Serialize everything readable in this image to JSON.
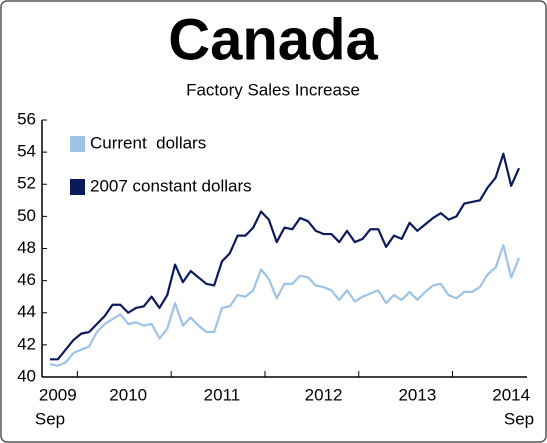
{
  "chart_data": {
    "type": "line",
    "title": "Canada",
    "subtitle": "Factory Sales Increase",
    "categories": [
      null,
      "2009",
      null,
      null,
      null,
      null,
      null,
      null,
      null,
      null,
      "2010",
      null,
      null,
      null,
      null,
      null,
      null,
      null,
      null,
      null,
      null,
      null,
      "2011",
      null,
      null,
      null,
      null,
      null,
      null,
      null,
      null,
      null,
      null,
      null,
      null,
      "2012",
      null,
      null,
      null,
      null,
      null,
      null,
      null,
      null,
      null,
      null,
      null,
      "2013",
      null,
      null,
      null,
      null,
      null,
      null,
      null,
      null,
      null,
      null,
      null,
      "2014",
      null
    ],
    "category_sublabels": [
      "Sep",
      null,
      null,
      null,
      null,
      null,
      null,
      null,
      null,
      null,
      null,
      null,
      null,
      null,
      null,
      null,
      null,
      null,
      null,
      null,
      null,
      null,
      null,
      null,
      null,
      null,
      null,
      null,
      null,
      null,
      null,
      null,
      null,
      null,
      null,
      null,
      null,
      null,
      null,
      null,
      null,
      null,
      null,
      null,
      null,
      null,
      null,
      null,
      null,
      null,
      null,
      null,
      null,
      null,
      null,
      null,
      null,
      null,
      null,
      null,
      "Sep"
    ],
    "series": [
      {
        "name": "Current  dollars",
        "color": "#9dc3e6",
        "values": [
          40.8,
          40.7,
          40.9,
          41.5,
          41.7,
          41.9,
          42.8,
          43.3,
          43.6,
          43.9,
          43.3,
          43.4,
          43.2,
          43.3,
          42.4,
          43.0,
          44.6,
          43.2,
          43.7,
          43.2,
          42.8,
          42.8,
          44.3,
          44.4,
          45.1,
          45.0,
          45.4,
          46.7,
          46.1,
          44.9,
          45.8,
          45.8,
          46.3,
          46.2,
          45.7,
          45.6,
          45.4,
          44.8,
          45.4,
          44.7,
          45.0,
          45.2,
          45.4,
          44.6,
          45.1,
          44.8,
          45.3,
          44.8,
          45.3,
          45.7,
          45.8,
          45.1,
          44.9,
          45.3,
          45.3,
          45.6,
          46.4,
          46.8,
          48.2,
          46.2,
          47.4
        ]
      },
      {
        "name": "2007 constant dollars",
        "color": "#0c1a5c",
        "values": [
          41.1,
          41.1,
          41.7,
          42.3,
          42.7,
          42.8,
          43.3,
          43.8,
          44.5,
          44.5,
          44.0,
          44.3,
          44.4,
          45.0,
          44.3,
          45.1,
          47.0,
          45.9,
          46.6,
          46.2,
          45.8,
          45.7,
          47.2,
          47.7,
          48.8,
          48.8,
          49.3,
          50.3,
          49.8,
          48.4,
          49.3,
          49.2,
          49.9,
          49.7,
          49.1,
          48.9,
          48.9,
          48.4,
          49.1,
          48.4,
          48.6,
          49.2,
          49.2,
          48.1,
          48.8,
          48.6,
          49.6,
          49.1,
          49.5,
          49.9,
          50.2,
          49.8,
          50.0,
          50.8,
          50.9,
          51.0,
          51.8,
          52.4,
          53.9,
          51.9,
          53.0
        ]
      }
    ],
    "ylim": [
      40,
      56
    ],
    "yticks": [
      40,
      42,
      44,
      46,
      48,
      50,
      52,
      54,
      56
    ],
    "grid": false,
    "legend": "top-left"
  }
}
